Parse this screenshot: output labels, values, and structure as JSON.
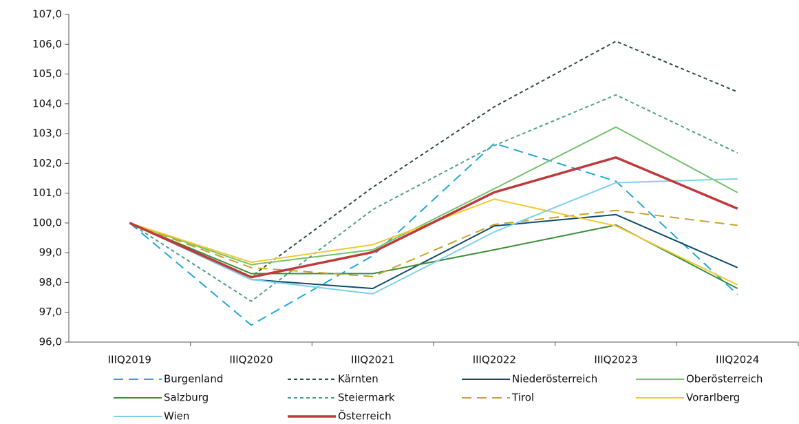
{
  "chart_data": {
    "type": "line",
    "categories": [
      "IIIQ2019",
      "IIIQ2020",
      "IIIQ2021",
      "IIIQ2022",
      "IIIQ2023",
      "IIIQ2024"
    ],
    "ylim": [
      96,
      107
    ],
    "yticks": [
      {
        "value": 96,
        "label": "96,0"
      },
      {
        "value": 97,
        "label": "97,0"
      },
      {
        "value": 98,
        "label": "98,0"
      },
      {
        "value": 99,
        "label": "99,0"
      },
      {
        "value": 100,
        "label": "100,0"
      },
      {
        "value": 101,
        "label": "101,0"
      },
      {
        "value": 102,
        "label": "102,0"
      },
      {
        "value": 103,
        "label": "103,0"
      },
      {
        "value": 104,
        "label": "104,0"
      },
      {
        "value": 105,
        "label": "105,0"
      },
      {
        "value": 106,
        "label": "106,0"
      },
      {
        "value": 107,
        "label": "107,0"
      }
    ],
    "grid": false,
    "legend": "bottom",
    "series": [
      {
        "name": "Burgenland",
        "color": "#1fa8d8",
        "dash": "dashed",
        "width": 2,
        "values": [
          100,
          96.57,
          98.9,
          102.67,
          101.4,
          97.6
        ]
      },
      {
        "name": "Kärnten",
        "color": "#2d4a46",
        "dash": "dotted",
        "width": 2,
        "values": [
          100,
          98.2,
          101.2,
          103.9,
          106.1,
          104.4
        ]
      },
      {
        "name": "Niederösterreich",
        "color": "#0e4c6b",
        "dash": "solid",
        "width": 2,
        "values": [
          100,
          98.1,
          97.8,
          99.9,
          100.28,
          98.5
        ]
      },
      {
        "name": "Oberösterreich",
        "color": "#72c26a",
        "dash": "solid",
        "width": 2,
        "values": [
          100,
          98.6,
          99.1,
          101.15,
          103.22,
          101.02
        ]
      },
      {
        "name": "Salzburg",
        "color": "#3a8f3a",
        "dash": "solid",
        "width": 2,
        "values": [
          100,
          98.3,
          98.3,
          99.1,
          99.93,
          97.8
        ]
      },
      {
        "name": "Steiermark",
        "color": "#4aa08a",
        "dash": "dotted",
        "width": 2,
        "values": [
          100,
          97.37,
          100.45,
          102.6,
          104.3,
          102.35
        ]
      },
      {
        "name": "Tirol",
        "color": "#c9a227",
        "dash": "dashed",
        "width": 2,
        "values": [
          100,
          98.5,
          98.2,
          99.95,
          100.42,
          99.92
        ]
      },
      {
        "name": "Vorarlberg",
        "color": "#f2c832",
        "dash": "solid",
        "width": 2,
        "values": [
          100,
          98.68,
          99.27,
          100.8,
          99.9,
          97.92
        ]
      },
      {
        "name": "Wien",
        "color": "#7dd0ea",
        "dash": "solid",
        "width": 2,
        "values": [
          100,
          98.1,
          97.62,
          99.7,
          101.35,
          101.48
        ]
      },
      {
        "name": "Österreich",
        "color": "#c0393b",
        "dash": "solid",
        "width": 3.5,
        "values": [
          100,
          98.18,
          99.02,
          101.03,
          102.2,
          100.48
        ]
      }
    ]
  }
}
